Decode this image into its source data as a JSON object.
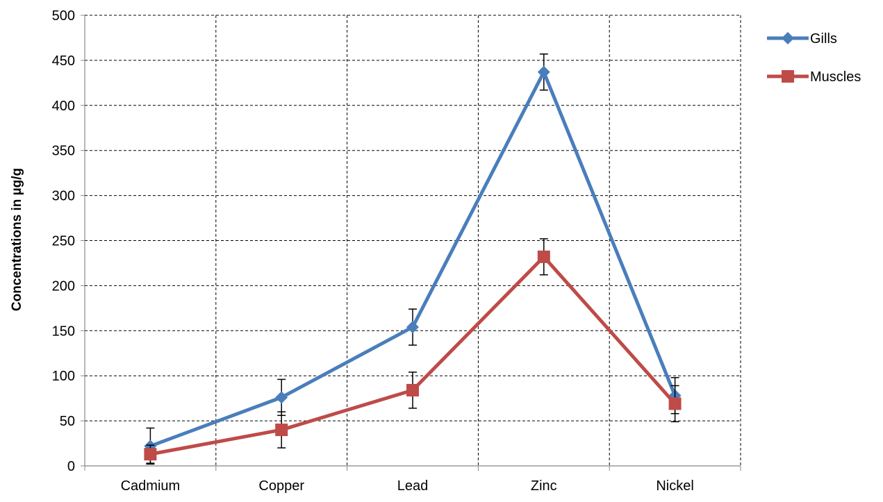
{
  "chart_data": {
    "type": "line",
    "title": "",
    "xlabel": "",
    "ylabel": "Concentrations in µg/g",
    "categories": [
      "Cadmium",
      "Copper",
      "Lead",
      "Zinc",
      "Nickel"
    ],
    "ylim": [
      0,
      500
    ],
    "yticks": [
      0,
      50,
      100,
      150,
      200,
      250,
      300,
      350,
      400,
      450,
      500
    ],
    "grid": true,
    "legend_position": "top-right",
    "series": [
      {
        "name": "Gills",
        "color": "#4A7EBB",
        "marker": "diamond",
        "values": [
          22,
          76,
          154,
          437,
          78
        ],
        "error": [
          20,
          20,
          20,
          20,
          20
        ]
      },
      {
        "name": "Muscles",
        "color": "#BE4B48",
        "marker": "square",
        "values": [
          13,
          40,
          84,
          232,
          69
        ],
        "error": [
          10,
          20,
          20,
          20,
          20
        ]
      }
    ]
  }
}
